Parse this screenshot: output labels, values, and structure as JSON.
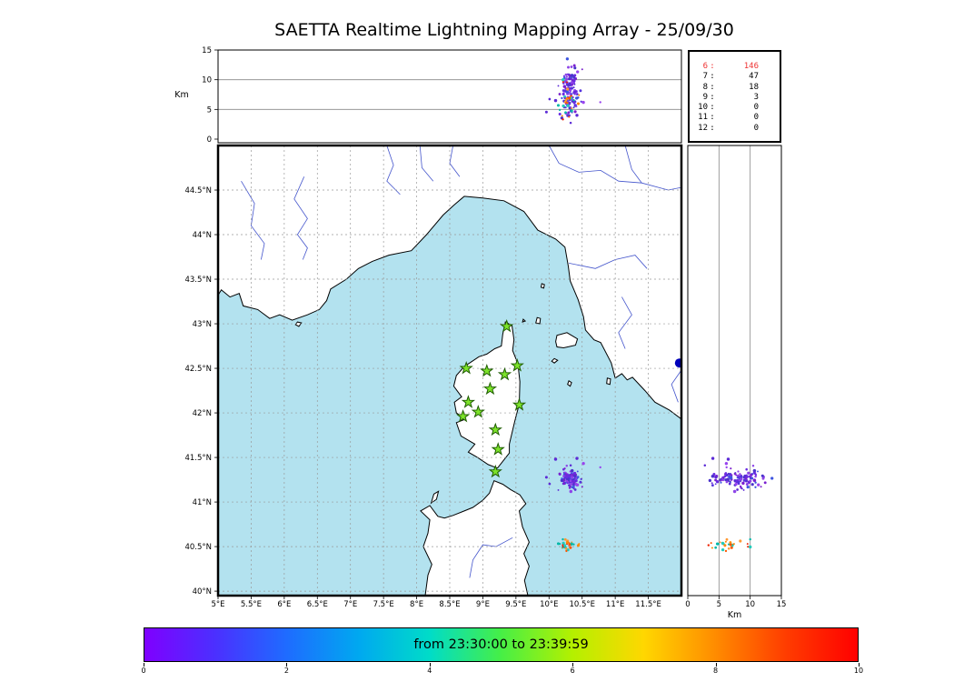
{
  "title": "SAETTA Realtime Lightning Mapping Array - 25/09/30",
  "colorbar": {
    "label": "from 23:30:00 to 23:39:59",
    "ticks": [
      0,
      2,
      4,
      6,
      8,
      10
    ],
    "gradient": [
      "#7f00ff",
      "#4b30ff",
      "#1e6cff",
      "#00a8f0",
      "#00dcc8",
      "#46ef46",
      "#b4f000",
      "#ffd700",
      "#ff8c00",
      "#ff3c00",
      "#ff0000"
    ]
  },
  "axes": {
    "map": {
      "lon_min": 5.0,
      "lon_max": 12.0,
      "lat_min": 39.95,
      "lat_max": 45.0,
      "lon_ticks": [
        {
          "v": 5,
          "label": "5°E"
        },
        {
          "v": 5.5,
          "label": "5.5°E"
        },
        {
          "v": 6,
          "label": "6°E"
        },
        {
          "v": 6.5,
          "label": "6.5°E"
        },
        {
          "v": 7,
          "label": "7°E"
        },
        {
          "v": 7.5,
          "label": "7.5°E"
        },
        {
          "v": 8,
          "label": "8°E"
        },
        {
          "v": 8.5,
          "label": "8.5°E"
        },
        {
          "v": 9,
          "label": "9°E"
        },
        {
          "v": 9.5,
          "label": "9.5°E"
        },
        {
          "v": 10,
          "label": "10°E"
        },
        {
          "v": 10.5,
          "label": "10.5°E"
        },
        {
          "v": 11,
          "label": "11°E"
        },
        {
          "v": 11.5,
          "label": "11.5°E"
        }
      ],
      "lat_ticks": [
        {
          "v": 44.5,
          "label": "44.5°N"
        },
        {
          "v": 44,
          "label": "44°N"
        },
        {
          "v": 43.5,
          "label": "43.5°N"
        },
        {
          "v": 43,
          "label": "43°N"
        },
        {
          "v": 42.5,
          "label": "42.5°N"
        },
        {
          "v": 42,
          "label": "42°N"
        },
        {
          "v": 41.5,
          "label": "41.5°N"
        },
        {
          "v": 41,
          "label": "41°N"
        },
        {
          "v": 40.5,
          "label": "40.5°N"
        },
        {
          "v": 40,
          "label": "40°N"
        }
      ]
    },
    "altitude": {
      "min": 0,
      "max": 15,
      "ticks": [
        {
          "v": 0,
          "label": "0"
        },
        {
          "v": 5,
          "label": "5"
        },
        {
          "v": 10,
          "label": "10"
        },
        {
          "v": 15,
          "label": "15"
        }
      ],
      "gridlines": [
        5,
        10
      ],
      "unit_label": "Km"
    }
  },
  "colors": {
    "sea": "#b3e2ef",
    "land": "#ffffff",
    "coast": "#000000",
    "river": "#4455cc",
    "grid_dashed": "#999999",
    "grid_solid": "#888888",
    "star_fill": "#7de32a",
    "star_edge": "#1e5c00",
    "stats_highlight": "#ee3333"
  },
  "chart_data": {
    "type": "scatter",
    "title": "SAETTA Realtime Lightning Mapping Array - 25/09/30",
    "time_window": {
      "start": "23:30:00",
      "end": "23:39:59",
      "colorbar_range": [
        0,
        10
      ]
    },
    "panels": [
      {
        "id": "lon-alt",
        "type": "scatter",
        "x": "longitude_deg_E",
        "y": "altitude_km",
        "xlim": [
          5,
          12
        ],
        "ylim": [
          0,
          15
        ],
        "ylabel": "Km",
        "grid_y_km": [
          5,
          10
        ]
      },
      {
        "id": "map",
        "type": "scatter",
        "x": "longitude_deg_E",
        "y": "latitude_deg_N",
        "xlim": [
          5,
          12
        ],
        "ylim": [
          39.95,
          45.0
        ]
      },
      {
        "id": "lat-alt",
        "type": "scatter",
        "x": "altitude_km",
        "y": "latitude_deg_N",
        "xlim": [
          0,
          15
        ],
        "ylim": [
          39.95,
          45.0
        ],
        "xlabel": "Km",
        "grid_x_km": [
          5,
          10
        ]
      }
    ],
    "station_count_histogram": {
      "labels": [
        "6",
        "7",
        "8",
        "9",
        "10",
        "11",
        "12"
      ],
      "values": [
        146,
        47,
        18,
        3,
        0,
        0,
        0
      ],
      "highlight": "6"
    },
    "stations": [
      {
        "lon": 9.36,
        "lat": 42.97
      },
      {
        "lon": 8.75,
        "lat": 42.5
      },
      {
        "lon": 9.06,
        "lat": 42.47
      },
      {
        "lon": 9.33,
        "lat": 42.43
      },
      {
        "lon": 9.52,
        "lat": 42.53
      },
      {
        "lon": 9.11,
        "lat": 42.27
      },
      {
        "lon": 8.78,
        "lat": 42.12
      },
      {
        "lon": 9.55,
        "lat": 42.09
      },
      {
        "lon": 8.7,
        "lat": 41.96
      },
      {
        "lon": 8.93,
        "lat": 42.01
      },
      {
        "lon": 9.19,
        "lat": 41.81
      },
      {
        "lon": 9.23,
        "lat": 41.59
      },
      {
        "lon": 9.19,
        "lat": 41.34
      }
    ],
    "clusters": [
      {
        "name": "storm-main-purple",
        "n": 115,
        "lon_mu": 10.32,
        "lon_sd": 0.06,
        "lat_mu": 41.26,
        "lat_sd": 0.045,
        "alt_mu": 8.2,
        "alt_sd": 2.0,
        "alt_min": 2.5,
        "alt_max": 13.5,
        "colors": [
          "#7a1fd0",
          "#6a2be2",
          "#5533dd",
          "#8e44e8",
          "#4b33cc",
          "#3d55e0"
        ],
        "seed": 7
      },
      {
        "name": "storm-south-mixed",
        "n": 28,
        "lon_mu": 10.27,
        "lon_sd": 0.09,
        "lat_mu": 40.52,
        "lat_sd": 0.028,
        "alt_mu": 5.5,
        "alt_sd": 2.2,
        "alt_min": 1.5,
        "alt_max": 10.0,
        "colors": [
          "#00b8a8",
          "#22ccbb",
          "#ff8800",
          "#ff5500",
          "#ee2200",
          "#ff9933"
        ],
        "seed": 13
      },
      {
        "name": "scattered-purple",
        "n": 16,
        "lon_mu": 10.38,
        "lon_sd": 0.22,
        "lat_mu": 41.22,
        "lat_sd": 0.12,
        "alt_mu": 7.5,
        "alt_sd": 2.8,
        "alt_min": 2.0,
        "alt_max": 13.0,
        "colors": [
          "#7a22cc",
          "#9944ee",
          "#5c2bd6"
        ],
        "seed": 99
      }
    ],
    "edge_marker": {
      "lon": 11.97,
      "lat": 42.56,
      "radius_px": 5,
      "color": "#0000bb"
    }
  },
  "map_geometry": {
    "mainland": [
      [
        5.0,
        45.0
      ],
      [
        12.0,
        45.0
      ],
      [
        12.0,
        41.93
      ],
      [
        11.82,
        42.03
      ],
      [
        11.6,
        42.12
      ],
      [
        11.45,
        42.25
      ],
      [
        11.26,
        42.4
      ],
      [
        11.18,
        42.37
      ],
      [
        11.1,
        42.44
      ],
      [
        11.0,
        42.39
      ],
      [
        10.94,
        42.56
      ],
      [
        10.78,
        42.79
      ],
      [
        10.68,
        42.82
      ],
      [
        10.55,
        42.93
      ],
      [
        10.52,
        43.08
      ],
      [
        10.44,
        43.27
      ],
      [
        10.32,
        43.48
      ],
      [
        10.29,
        43.65
      ],
      [
        10.24,
        43.86
      ],
      [
        10.1,
        43.95
      ],
      [
        9.83,
        44.05
      ],
      [
        9.62,
        44.26
      ],
      [
        9.32,
        44.38
      ],
      [
        9.0,
        44.41
      ],
      [
        8.72,
        44.43
      ],
      [
        8.56,
        44.33
      ],
      [
        8.4,
        44.22
      ],
      [
        8.15,
        44.0
      ],
      [
        7.92,
        43.82
      ],
      [
        7.58,
        43.77
      ],
      [
        7.33,
        43.7
      ],
      [
        7.12,
        43.62
      ],
      [
        6.94,
        43.5
      ],
      [
        6.7,
        43.39
      ],
      [
        6.64,
        43.26
      ],
      [
        6.53,
        43.16
      ],
      [
        6.35,
        43.1
      ],
      [
        6.12,
        43.04
      ],
      [
        5.93,
        43.1
      ],
      [
        5.78,
        43.06
      ],
      [
        5.6,
        43.16
      ],
      [
        5.38,
        43.2
      ],
      [
        5.32,
        43.34
      ],
      [
        5.18,
        43.3
      ],
      [
        5.05,
        43.38
      ],
      [
        5.0,
        43.32
      ]
    ],
    "corsica": [
      [
        9.34,
        43.02
      ],
      [
        9.44,
        42.98
      ],
      [
        9.47,
        42.82
      ],
      [
        9.45,
        42.7
      ],
      [
        9.53,
        42.55
      ],
      [
        9.56,
        42.35
      ],
      [
        9.55,
        42.1
      ],
      [
        9.48,
        41.9
      ],
      [
        9.4,
        41.65
      ],
      [
        9.4,
        41.55
      ],
      [
        9.22,
        41.38
      ],
      [
        9.08,
        41.42
      ],
      [
        8.92,
        41.5
      ],
      [
        8.78,
        41.56
      ],
      [
        8.88,
        41.65
      ],
      [
        8.67,
        41.74
      ],
      [
        8.6,
        41.89
      ],
      [
        8.74,
        41.93
      ],
      [
        8.6,
        42.0
      ],
      [
        8.57,
        42.12
      ],
      [
        8.68,
        42.18
      ],
      [
        8.56,
        42.3
      ],
      [
        8.6,
        42.42
      ],
      [
        8.72,
        42.52
      ],
      [
        8.8,
        42.56
      ],
      [
        8.94,
        42.63
      ],
      [
        9.06,
        42.66
      ],
      [
        9.18,
        42.72
      ],
      [
        9.28,
        42.75
      ],
      [
        9.3,
        42.88
      ]
    ],
    "sardinia": [
      [
        8.13,
        39.95
      ],
      [
        8.17,
        40.18
      ],
      [
        8.23,
        40.3
      ],
      [
        8.1,
        40.5
      ],
      [
        8.17,
        40.65
      ],
      [
        8.2,
        40.8
      ],
      [
        8.06,
        40.9
      ],
      [
        8.2,
        40.96
      ],
      [
        8.32,
        40.84
      ],
      [
        8.42,
        40.82
      ],
      [
        8.55,
        40.85
      ],
      [
        8.72,
        40.9
      ],
      [
        8.85,
        40.94
      ],
      [
        9.0,
        41.02
      ],
      [
        9.1,
        41.1
      ],
      [
        9.17,
        41.24
      ],
      [
        9.3,
        41.2
      ],
      [
        9.42,
        41.14
      ],
      [
        9.56,
        41.08
      ],
      [
        9.65,
        40.98
      ],
      [
        9.55,
        40.9
      ],
      [
        9.6,
        40.72
      ],
      [
        9.7,
        40.55
      ],
      [
        9.62,
        40.42
      ],
      [
        9.7,
        40.28
      ],
      [
        9.63,
        40.12
      ],
      [
        9.68,
        39.95
      ]
    ],
    "islands": [
      {
        "name": "elba",
        "points": [
          [
            10.1,
            42.8
          ],
          [
            10.12,
            42.87
          ],
          [
            10.27,
            42.9
          ],
          [
            10.43,
            42.83
          ],
          [
            10.4,
            42.76
          ],
          [
            10.22,
            42.73
          ],
          [
            10.12,
            42.74
          ]
        ]
      },
      {
        "name": "capraia",
        "points": [
          [
            9.8,
            43.01
          ],
          [
            9.82,
            43.07
          ],
          [
            9.87,
            43.06
          ],
          [
            9.86,
            43.0
          ]
        ]
      },
      {
        "name": "gorgona",
        "points": [
          [
            9.88,
            43.41
          ],
          [
            9.89,
            43.45
          ],
          [
            9.93,
            43.44
          ],
          [
            9.92,
            43.4
          ]
        ]
      },
      {
        "name": "pianosa",
        "points": [
          [
            10.04,
            42.58
          ],
          [
            10.08,
            42.61
          ],
          [
            10.13,
            42.59
          ],
          [
            10.08,
            42.56
          ]
        ]
      },
      {
        "name": "montecristo",
        "points": [
          [
            10.28,
            42.32
          ],
          [
            10.3,
            42.36
          ],
          [
            10.34,
            42.34
          ],
          [
            10.32,
            42.3
          ]
        ]
      },
      {
        "name": "giglio",
        "points": [
          [
            10.87,
            42.33
          ],
          [
            10.88,
            42.39
          ],
          [
            10.93,
            42.38
          ],
          [
            10.92,
            42.32
          ]
        ]
      },
      {
        "name": "giraglia",
        "points": [
          [
            9.6,
            43.02
          ],
          [
            9.61,
            43.05
          ],
          [
            9.64,
            43.03
          ]
        ]
      },
      {
        "name": "porquerolles",
        "points": [
          [
            6.17,
            42.99
          ],
          [
            6.2,
            43.02
          ],
          [
            6.26,
            43.01
          ],
          [
            6.22,
            42.97
          ]
        ]
      },
      {
        "name": "asinara",
        "points": [
          [
            8.22,
            40.99
          ],
          [
            8.26,
            41.09
          ],
          [
            8.33,
            41.12
          ],
          [
            8.3,
            41.03
          ]
        ]
      }
    ],
    "rivers": [
      [
        [
          5.35,
          44.6
        ],
        [
          5.55,
          44.35
        ],
        [
          5.5,
          44.1
        ],
        [
          5.7,
          43.9
        ],
        [
          5.65,
          43.72
        ]
      ],
      [
        [
          6.3,
          44.65
        ],
        [
          6.15,
          44.4
        ],
        [
          6.35,
          44.18
        ],
        [
          6.2,
          44.0
        ],
        [
          6.35,
          43.85
        ],
        [
          6.28,
          43.72
        ]
      ],
      [
        [
          7.55,
          45.0
        ],
        [
          7.65,
          44.78
        ],
        [
          7.55,
          44.6
        ],
        [
          7.75,
          44.45
        ]
      ],
      [
        [
          8.05,
          45.0
        ],
        [
          8.08,
          44.75
        ],
        [
          8.25,
          44.6
        ]
      ],
      [
        [
          8.55,
          45.0
        ],
        [
          8.5,
          44.8
        ],
        [
          8.65,
          44.65
        ]
      ],
      [
        [
          10.0,
          45.0
        ],
        [
          10.15,
          44.8
        ],
        [
          10.45,
          44.7
        ],
        [
          10.78,
          44.72
        ],
        [
          11.05,
          44.6
        ],
        [
          11.4,
          44.58
        ],
        [
          11.8,
          44.5
        ],
        [
          12.0,
          44.53
        ]
      ],
      [
        [
          11.15,
          45.0
        ],
        [
          11.25,
          44.73
        ],
        [
          11.4,
          44.58
        ]
      ],
      [
        [
          10.3,
          43.68
        ],
        [
          10.7,
          43.62
        ],
        [
          11.0,
          43.72
        ],
        [
          11.3,
          43.77
        ],
        [
          11.48,
          43.62
        ]
      ],
      [
        [
          11.1,
          43.3
        ],
        [
          11.25,
          43.1
        ],
        [
          11.05,
          42.9
        ],
        [
          11.15,
          42.72
        ]
      ],
      [
        [
          12.0,
          42.48
        ],
        [
          11.85,
          42.32
        ],
        [
          11.95,
          42.12
        ]
      ],
      [
        [
          9.45,
          40.6
        ],
        [
          9.2,
          40.5
        ],
        [
          9.0,
          40.52
        ],
        [
          8.85,
          40.35
        ],
        [
          8.8,
          40.15
        ]
      ]
    ]
  }
}
